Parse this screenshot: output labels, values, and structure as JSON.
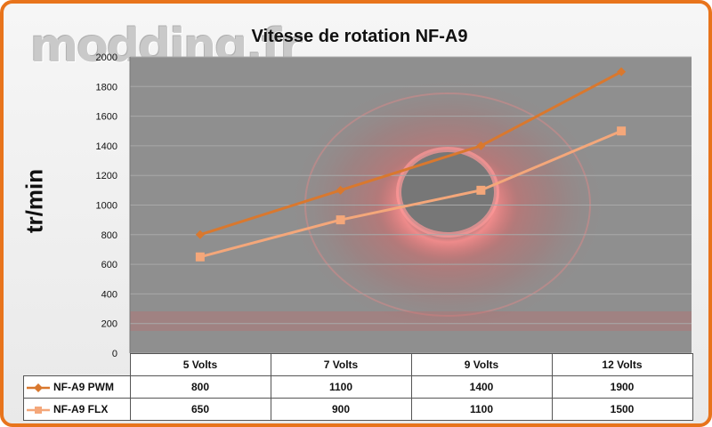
{
  "watermark": "modding.fr",
  "chart_data": {
    "type": "line",
    "title": "Vitesse de rotation NF-A9",
    "xlabel": "",
    "ylabel": "tr/min",
    "categories": [
      "5 Volts",
      "7 Volts",
      "9 Volts",
      "12 Volts"
    ],
    "ylim": [
      0,
      2000
    ],
    "yticks": [
      0,
      200,
      400,
      600,
      800,
      1000,
      1200,
      1400,
      1600,
      1800,
      2000
    ],
    "grid": true,
    "legend": "data-table",
    "series": [
      {
        "name": "NF-A9 PWM",
        "values": [
          800,
          1100,
          1400,
          1900
        ],
        "color": "#d9782e",
        "marker": "diamond"
      },
      {
        "name": "NF-A9 FLX",
        "values": [
          650,
          900,
          1100,
          1500
        ],
        "color": "#f4a77a",
        "marker": "square"
      }
    ],
    "colors": {
      "frame": "#e8741c",
      "plot_background": "#8f8f8f",
      "glow": "#ff6a6a"
    }
  }
}
